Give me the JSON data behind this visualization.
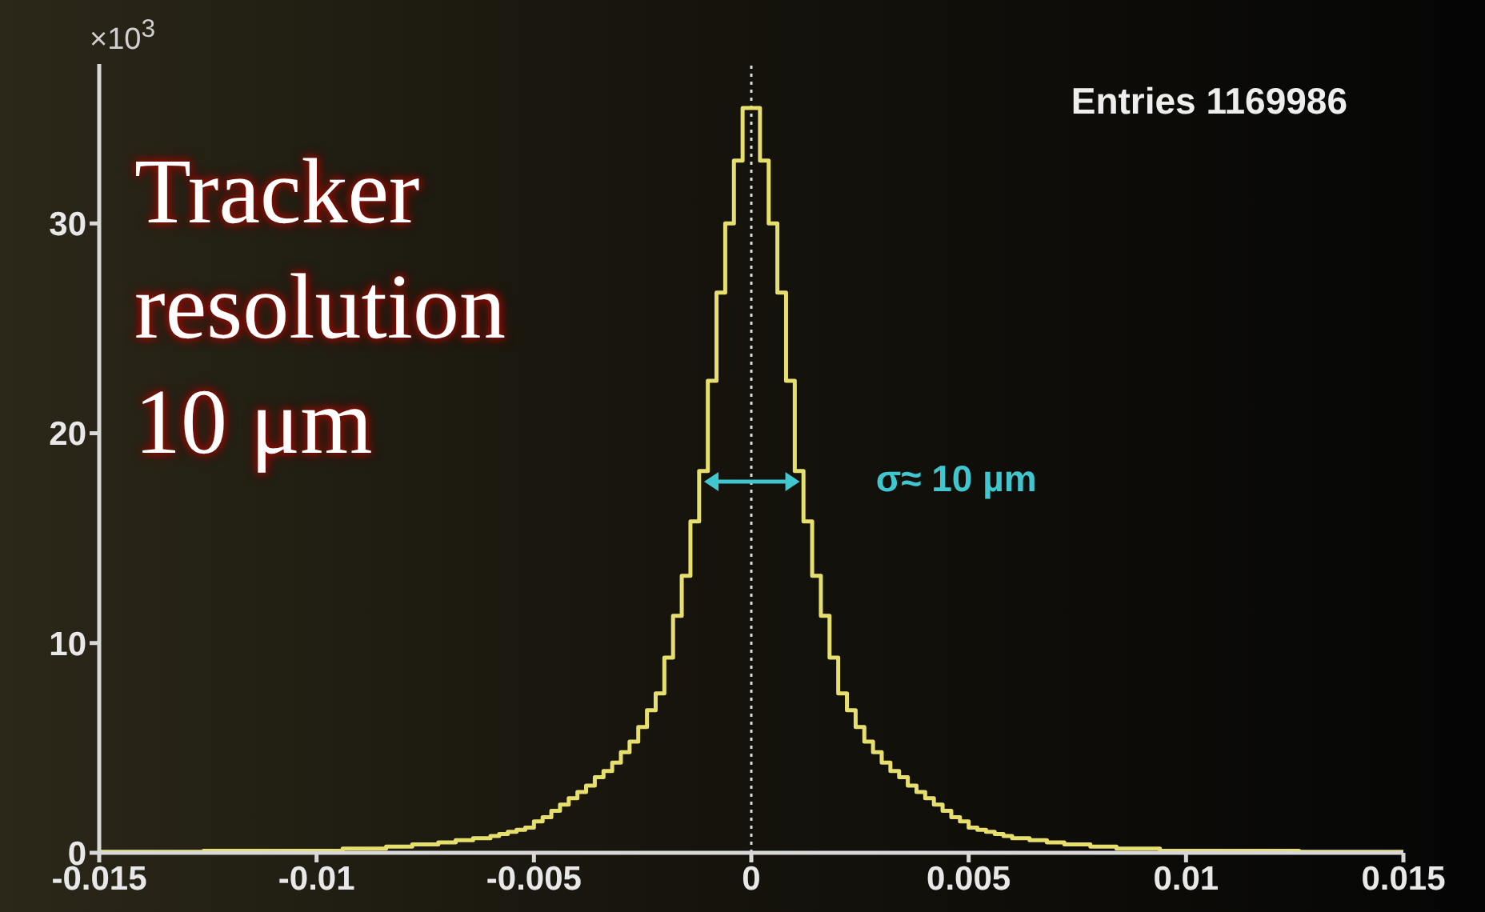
{
  "chart_data": {
    "type": "histogram",
    "ylabel": "×10$^{3}$",
    "color": "#e6df6e",
    "bins": [
      -0.015,
      -0.0148,
      -0.0146,
      -0.0144,
      -0.0142,
      -0.014,
      -0.0138,
      -0.0136,
      -0.0134,
      -0.0132,
      -0.013,
      -0.0128,
      -0.0126,
      -0.0124,
      -0.0122,
      -0.012,
      -0.0118,
      -0.0116,
      -0.0114,
      -0.0112,
      -0.011,
      -0.0108,
      -0.0106,
      -0.0104,
      -0.0102,
      -0.01,
      -0.0098,
      -0.0096,
      -0.0094,
      -0.0092,
      -0.009,
      -0.0088,
      -0.0086,
      -0.0084,
      -0.0082,
      -0.008,
      -0.0078,
      -0.0076,
      -0.0074,
      -0.0072,
      -0.007,
      -0.0068,
      -0.0066,
      -0.0064,
      -0.0062,
      -0.006,
      -0.0058,
      -0.0056,
      -0.0054,
      -0.0052,
      -0.005,
      -0.0048,
      -0.0046,
      -0.0044,
      -0.0042,
      -0.004,
      -0.0038,
      -0.0036,
      -0.0034,
      -0.0032,
      -0.003,
      -0.0028,
      -0.0026,
      -0.0024,
      -0.0022,
      -0.002,
      -0.0018,
      -0.0016,
      -0.0014,
      -0.0012,
      -0.001,
      -0.0008,
      -0.0006,
      -0.0004,
      -0.0002,
      0,
      0.0002,
      0.0004,
      0.0006,
      0.0008,
      0.001,
      0.0012,
      0.0014,
      0.0016,
      0.0018,
      0.002,
      0.0022,
      0.0024,
      0.0026,
      0.0028,
      0.003,
      0.0032,
      0.0034,
      0.0036,
      0.0038,
      0.004,
      0.0042,
      0.0044,
      0.0046,
      0.0048,
      0.005,
      0.0052,
      0.0054,
      0.0056,
      0.0058,
      0.006,
      0.0062,
      0.0064,
      0.0066,
      0.0068,
      0.007,
      0.0072,
      0.0074,
      0.0076,
      0.0078,
      0.008,
      0.0082,
      0.0084,
      0.0086,
      0.0088,
      0.009,
      0.0092,
      0.0094,
      0.0096,
      0.0098,
      0.01,
      0.0102,
      0.0104,
      0.0106,
      0.0108,
      0.011,
      0.0112,
      0.0114,
      0.0116,
      0.0118,
      0.012,
      0.0122,
      0.0124,
      0.0126,
      0.0128,
      0.013,
      0.0132,
      0.0134,
      0.0136,
      0.0138,
      0.014,
      0.0142,
      0.0144,
      0.0146,
      0.0148,
      0.015
    ],
    "values": [
      0.05,
      0.05,
      0.05,
      0.05,
      0.05,
      0.05,
      0.05,
      0.05,
      0.05,
      0.05,
      0.05,
      0.05,
      0.1,
      0.1,
      0.1,
      0.1,
      0.1,
      0.1,
      0.1,
      0.1,
      0.1,
      0.1,
      0.1,
      0.1,
      0.1,
      0.1,
      0.1,
      0.1,
      0.2,
      0.2,
      0.2,
      0.2,
      0.2,
      0.3,
      0.3,
      0.3,
      0.4,
      0.4,
      0.4,
      0.5,
      0.5,
      0.6,
      0.6,
      0.7,
      0.7,
      0.8,
      0.9,
      1.0,
      1.1,
      1.2,
      1.5,
      1.7,
      2.0,
      2.3,
      2.6,
      2.9,
      3.2,
      3.6,
      3.9,
      4.3,
      4.8,
      5.3,
      6.0,
      6.8,
      7.6,
      9.3,
      11.3,
      13.2,
      15.8,
      18.2,
      22.5,
      26.7,
      30,
      33,
      35.5,
      35.5,
      33,
      30,
      26.7,
      22.5,
      18.2,
      15.8,
      13.2,
      11.3,
      9.3,
      7.6,
      6.8,
      6.0,
      5.3,
      4.8,
      4.3,
      3.9,
      3.6,
      3.2,
      2.9,
      2.6,
      2.3,
      2.0,
      1.7,
      1.5,
      1.2,
      1.1,
      1.0,
      0.9,
      0.8,
      0.7,
      0.7,
      0.6,
      0.6,
      0.5,
      0.5,
      0.4,
      0.4,
      0.4,
      0.3,
      0.3,
      0.3,
      0.2,
      0.2,
      0.2,
      0.2,
      0.2,
      0.1,
      0.1,
      0.1,
      0.1,
      0.1,
      0.1,
      0.1,
      0.1,
      0.1,
      0.1,
      0.1,
      0.1,
      0.1,
      0.1,
      0.1,
      0.1,
      0.05,
      0.05,
      0.05,
      0.05,
      0.05,
      0.05,
      0.05,
      0.05,
      0.05,
      0.05,
      0.05,
      0.05
    ],
    "xlim": [
      -0.015,
      0.015
    ],
    "xticks": [
      -0.015,
      -0.01,
      -0.005,
      0,
      0.005,
      0.01,
      0.015
    ],
    "ylim": [
      0,
      37.6
    ],
    "yticks": [
      0,
      10,
      20,
      30
    ],
    "ref_lines": [
      {
        "axis": "x",
        "value": 0,
        "color": "#dddddd",
        "line_style": "dotted"
      }
    ],
    "annotations": [
      "Entries 1169986",
      "Tracker resolution 10 μm",
      {
        "text": "σ≈ 10 µm",
        "x": 0.0011,
        "y": 17.7
      }
    ]
  }
}
